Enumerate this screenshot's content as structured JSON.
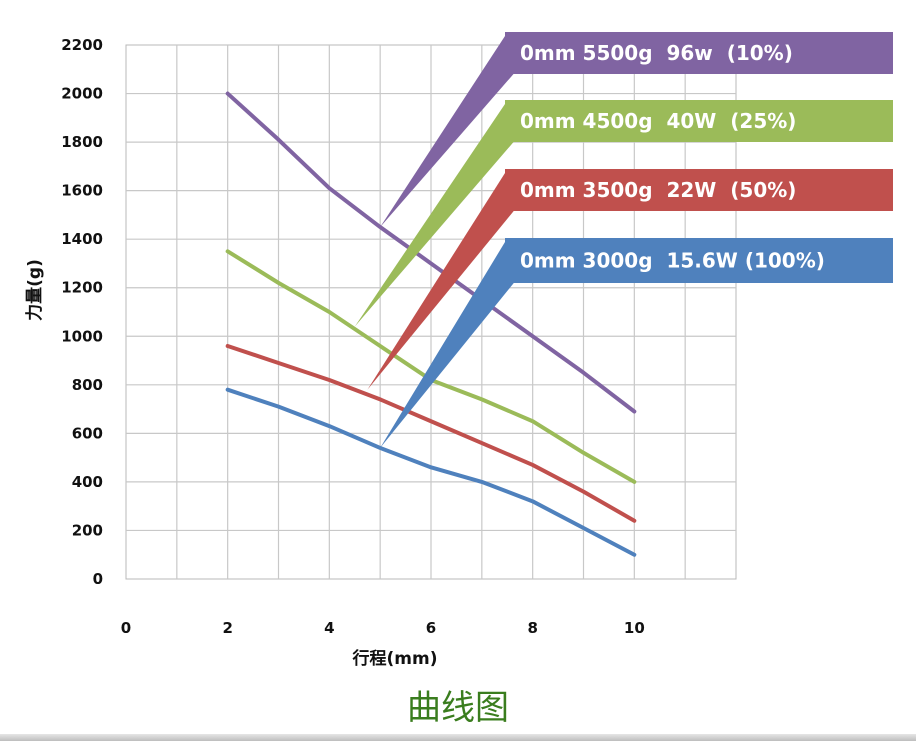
{
  "chart_data": {
    "type": "line",
    "xlabel": "行程(mm)",
    "ylabel": "力量(g)",
    "xlim": [
      0,
      12
    ],
    "ylim": [
      0,
      2200
    ],
    "x_ticks": [
      0,
      2,
      4,
      6,
      8,
      10
    ],
    "y_ticks": [
      0,
      200,
      400,
      600,
      800,
      1000,
      1200,
      1400,
      1600,
      1800,
      2000,
      2200
    ],
    "grid": true,
    "legend_position": "top-right",
    "series": [
      {
        "name": "0mm 5500g  96w  (10%)",
        "color": "#8064a2",
        "x": [
          2,
          3,
          4,
          5,
          6,
          7,
          8,
          9,
          10
        ],
        "y": [
          2000,
          1810,
          1610,
          1450,
          1300,
          1150,
          1000,
          850,
          690
        ]
      },
      {
        "name": "0mm 4500g  40W  (25%)",
        "color": "#9bbb59",
        "x": [
          2,
          3,
          4,
          5,
          6,
          7,
          8,
          9,
          10
        ],
        "y": [
          1350,
          1220,
          1100,
          960,
          820,
          740,
          650,
          520,
          400
        ]
      },
      {
        "name": "0mm 3500g  22W  (50%)",
        "color": "#c0504d",
        "x": [
          2,
          3,
          4,
          5,
          6,
          7,
          8,
          9,
          10
        ],
        "y": [
          960,
          890,
          820,
          740,
          650,
          560,
          470,
          360,
          240
        ]
      },
      {
        "name": "0mm 3000g  15.6W (100%)",
        "color": "#4f81bd",
        "x": [
          2,
          3,
          4,
          5,
          6,
          7,
          8,
          9,
          10
        ],
        "y": [
          780,
          710,
          630,
          540,
          460,
          400,
          320,
          210,
          100
        ]
      }
    ]
  },
  "caption": "曲线图"
}
